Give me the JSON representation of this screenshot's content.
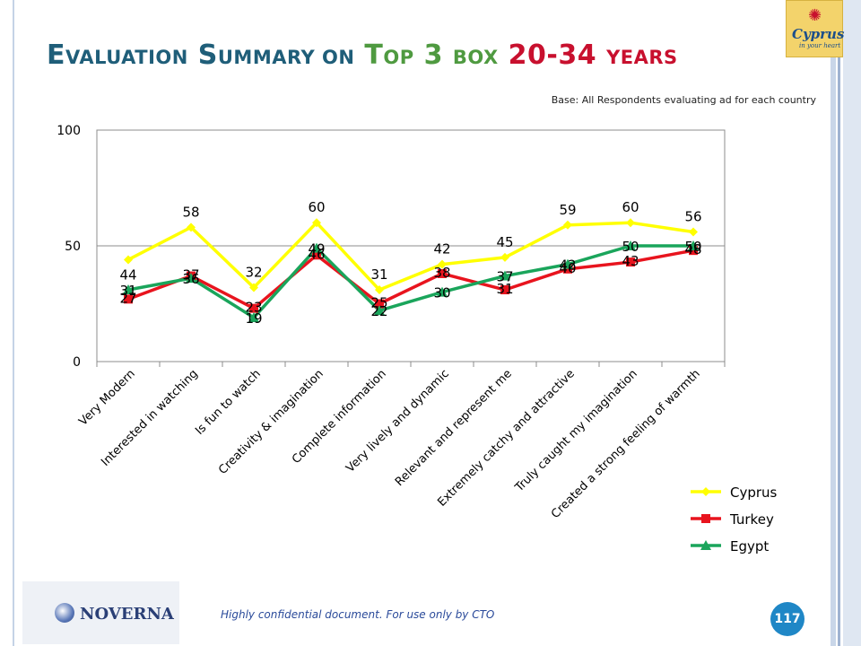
{
  "title": {
    "part1_initial": "E",
    "part1_rest": "VALUATION",
    "part2_initial": "S",
    "part2_rest": "UMMARY ON",
    "part3_initial": "T",
    "part3_rest": "OP",
    "part4": "3",
    "part5": "BOX",
    "part6": "20-34",
    "part7": "YEARS"
  },
  "base_note": "Base: All Respondents evaluating ad for each country",
  "footer_text": "Highly confidential document. For use only by CTO",
  "page_number": "117",
  "logo_cyprus": {
    "word": "Cyprus",
    "tagline": "in your heart"
  },
  "logo_noverna": {
    "name": "NOVERNA"
  },
  "chart_data": {
    "type": "line",
    "categories": [
      "Very Modern",
      "Interested in watching",
      "Is fun to watch",
      "Creativity & imagination",
      "Complete information",
      "Very lively and dynamic",
      "Relevant and represent me",
      "Extremely catchy and attractive",
      "Truly caught my imagination",
      "Created a strong feeling of warmth"
    ],
    "y_ticks": [
      "0",
      "50",
      "100"
    ],
    "ylim": [
      0,
      100
    ],
    "grid": "horizontal at 50",
    "legend_position": "bottom-right",
    "series": [
      {
        "name": "Cyprus",
        "color": "#ffff00",
        "marker": "diamond",
        "values": [
          44,
          58,
          32,
          60,
          31,
          42,
          45,
          59,
          60,
          56
        ]
      },
      {
        "name": "Turkey",
        "color": "#e8141e",
        "marker": "square",
        "values": [
          27,
          37,
          23,
          46,
          25,
          38,
          31,
          40,
          43,
          48
        ]
      },
      {
        "name": "Egypt",
        "color": "#1aa55b",
        "marker": "triangle",
        "values": [
          31,
          36,
          19,
          49,
          22,
          30,
          37,
          42,
          50,
          50
        ]
      }
    ]
  }
}
